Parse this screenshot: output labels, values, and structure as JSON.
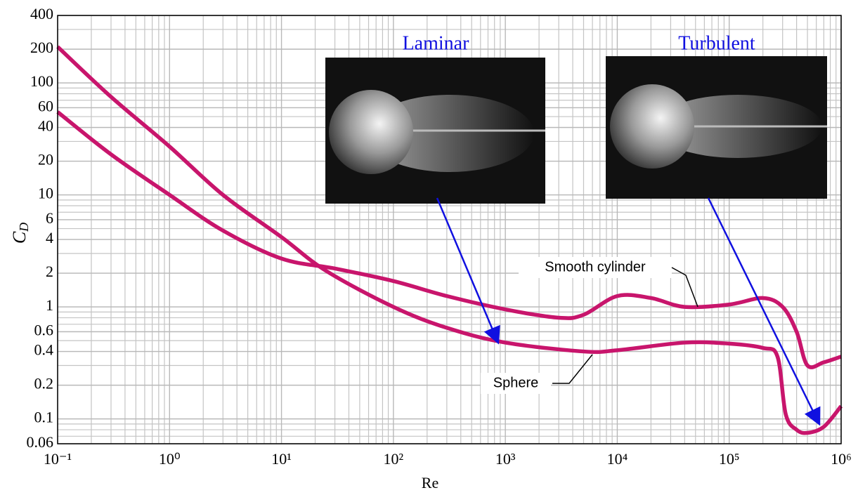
{
  "chart_data": {
    "type": "line",
    "log_x": true,
    "log_y": true,
    "grid": true,
    "minor_grid": true,
    "x_label": "Re",
    "y_label": {
      "symbol": "C",
      "subscript": "D"
    },
    "xlim": [
      0.1,
      1000000
    ],
    "ylim": [
      0.06,
      400
    ],
    "xticks": [
      {
        "value": 0.1,
        "label": "10⁻¹"
      },
      {
        "value": 1,
        "label": "10⁰"
      },
      {
        "value": 10,
        "label": "10¹"
      },
      {
        "value": 100,
        "label": "10²"
      },
      {
        "value": 1000,
        "label": "10³"
      },
      {
        "value": 10000,
        "label": "10⁴"
      },
      {
        "value": 100000,
        "label": "10⁵"
      },
      {
        "value": 1000000,
        "label": "10⁶"
      }
    ],
    "yticks": [
      400,
      200,
      100,
      60,
      40,
      20,
      10,
      6,
      4,
      2,
      1,
      0.6,
      0.4,
      0.2,
      0.1,
      0.06
    ],
    "series": [
      {
        "name": "Sphere",
        "color": "#c8156c",
        "x": [
          0.1,
          0.3,
          1,
          3,
          10,
          25,
          100,
          300,
          1000,
          5000,
          10000,
          40000,
          100000,
          200000,
          270000,
          320000,
          400000,
          500000,
          700000,
          1000000
        ],
        "values": [
          210,
          75,
          27,
          10,
          4.2,
          2.1,
          1.0,
          0.65,
          0.48,
          0.4,
          0.41,
          0.48,
          0.47,
          0.43,
          0.36,
          0.11,
          0.08,
          0.075,
          0.085,
          0.13
        ]
      },
      {
        "name": "Smooth cylinder",
        "color": "#c8156c",
        "x": [
          0.1,
          0.3,
          1,
          3,
          10,
          30,
          100,
          300,
          1000,
          3000,
          5000,
          10000,
          20000,
          40000,
          100000,
          200000,
          300000,
          400000,
          500000,
          700000,
          1000000
        ],
        "values": [
          55,
          23,
          10,
          4.8,
          2.7,
          2.2,
          1.7,
          1.25,
          0.95,
          0.8,
          0.85,
          1.25,
          1.2,
          1.0,
          1.05,
          1.2,
          1.0,
          0.6,
          0.3,
          0.32,
          0.36
        ]
      }
    ],
    "annotations": [
      "Laminar",
      "Turbulent"
    ]
  }
}
